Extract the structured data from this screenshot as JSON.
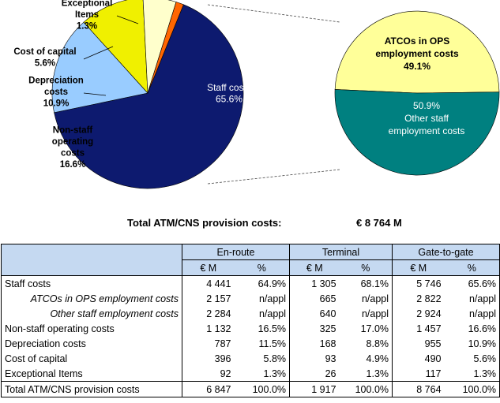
{
  "chart_data": [
    {
      "type": "pie",
      "categories": [
        "Staff costs",
        "Non-staff operating costs",
        "Depreciation costs",
        "Cost of capital",
        "Exceptional Items"
      ],
      "values": [
        65.6,
        16.6,
        10.9,
        5.6,
        1.3
      ],
      "colors": [
        "#0d1a6f",
        "#99ccff",
        "#f0f000",
        "#ffffcc",
        "#ff6600"
      ],
      "slices": [
        {
          "label_lines": [
            "Staff costs"
          ],
          "pct": "65.6%"
        },
        {
          "label_lines": [
            "Non-staff",
            "operating",
            "costs"
          ],
          "pct": "16.6%"
        },
        {
          "label_lines": [
            "Depreciation",
            "costs"
          ],
          "pct": "10.9%"
        },
        {
          "label_lines": [
            "Cost of capital"
          ],
          "pct": "5.6%"
        },
        {
          "label_lines": [
            "Exceptional",
            "Items"
          ],
          "pct": "1.3%"
        }
      ]
    },
    {
      "type": "pie",
      "categories": [
        "ATCOs in OPS employment costs",
        "Other staff employment costs"
      ],
      "values": [
        49.1,
        50.9
      ],
      "colors": [
        "#ffff99",
        "#008080"
      ],
      "slices": [
        {
          "label_lines": [
            "ATCOs in OPS",
            "employment costs"
          ],
          "pct": "49.1%"
        },
        {
          "label_lines": [
            "Other staff",
            "employment costs"
          ],
          "pct": "50.9%"
        }
      ]
    }
  ],
  "total": {
    "label": "Total ATM/CNS provision costs:",
    "value": "€ 8 764  M"
  },
  "table": {
    "groups": [
      "En-route",
      "Terminal",
      "Gate-to-gate"
    ],
    "units": [
      "€ M",
      "%",
      "€ M",
      "%",
      "€ M",
      "%"
    ],
    "rows": [
      {
        "label": "Staff costs",
        "italic": false,
        "cells": [
          "4 441",
          "64.9%",
          "1 305",
          "68.1%",
          "5 746",
          "65.6%"
        ]
      },
      {
        "label": "ATCOs in OPS employment costs",
        "italic": true,
        "cells": [
          "2 157",
          "n/appl",
          "665",
          "n/appl",
          "2 822",
          "n/appl"
        ]
      },
      {
        "label": "Other staff employment costs",
        "italic": true,
        "cells": [
          "2 284",
          "n/appl",
          "640",
          "n/appl",
          "2 924",
          "n/appl"
        ]
      },
      {
        "label": "Non-staff operating costs",
        "italic": false,
        "cells": [
          "1 132",
          "16.5%",
          "325",
          "17.0%",
          "1 457",
          "16.6%"
        ]
      },
      {
        "label": "Depreciation costs",
        "italic": false,
        "cells": [
          "787",
          "11.5%",
          "168",
          "8.8%",
          "955",
          "10.9%"
        ]
      },
      {
        "label": "Cost of capital",
        "italic": false,
        "cells": [
          "396",
          "5.8%",
          "93",
          "4.9%",
          "490",
          "5.6%"
        ]
      },
      {
        "label": "Exceptional Items",
        "italic": false,
        "cells": [
          "92",
          "1.3%",
          "26",
          "1.3%",
          "117",
          "1.3%"
        ]
      }
    ],
    "total_row": {
      "label": "Total ATM/CNS provision costs",
      "cells": [
        "6 847",
        "100.0%",
        "1 917",
        "100.0%",
        "8 764",
        "100.0%"
      ]
    }
  }
}
